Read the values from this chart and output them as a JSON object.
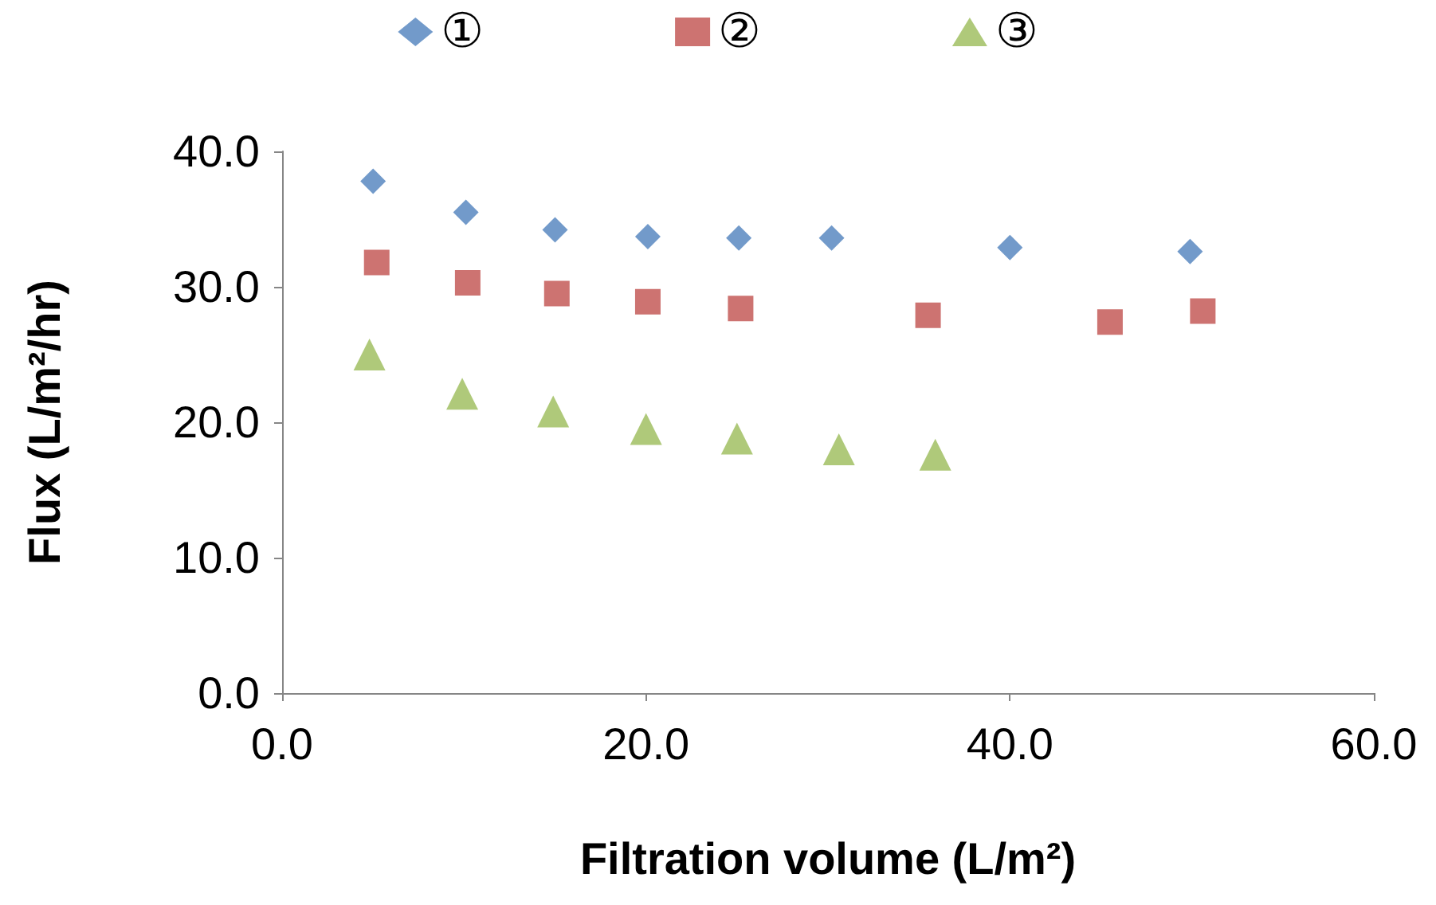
{
  "chart_data": {
    "type": "scatter",
    "xlabel": "Filtration volume (L/m²)",
    "ylabel": "Flux (L/m²/hr)",
    "xlim": [
      0,
      60
    ],
    "ylim": [
      0,
      40
    ],
    "xticks": [
      {
        "value": 0,
        "label": "0.0"
      },
      {
        "value": 20,
        "label": "20.0"
      },
      {
        "value": 40,
        "label": "40.0"
      },
      {
        "value": 60,
        "label": "60.0"
      }
    ],
    "yticks": [
      {
        "value": 0,
        "label": "0.0"
      },
      {
        "value": 10,
        "label": "10.0"
      },
      {
        "value": 20,
        "label": "20.0"
      },
      {
        "value": 30,
        "label": "30.0"
      },
      {
        "value": 40,
        "label": "40.0"
      }
    ],
    "grid": false,
    "legend": "top",
    "series": [
      {
        "name": "①",
        "color": "#4f81bd",
        "marker": "diamond",
        "x": [
          5.0,
          10.1,
          15.0,
          20.1,
          25.1,
          30.2,
          40.0,
          49.9
        ],
        "values": [
          37.8,
          35.5,
          34.2,
          33.7,
          33.6,
          33.6,
          32.9,
          32.6
        ]
      },
      {
        "name": "②",
        "color": "#c0504d",
        "marker": "square",
        "x": [
          5.2,
          10.2,
          15.1,
          20.1,
          25.2,
          35.5,
          45.5,
          50.6
        ],
        "values": [
          31.8,
          30.3,
          29.5,
          28.9,
          28.4,
          27.9,
          27.4,
          28.2
        ]
      },
      {
        "name": "③",
        "color": "#9bbb59",
        "marker": "triangle",
        "x": [
          4.8,
          9.9,
          14.9,
          20.0,
          25.0,
          30.6,
          35.9
        ],
        "values": [
          25.0,
          22.1,
          20.8,
          19.5,
          18.8,
          18.0,
          17.6
        ]
      }
    ]
  }
}
